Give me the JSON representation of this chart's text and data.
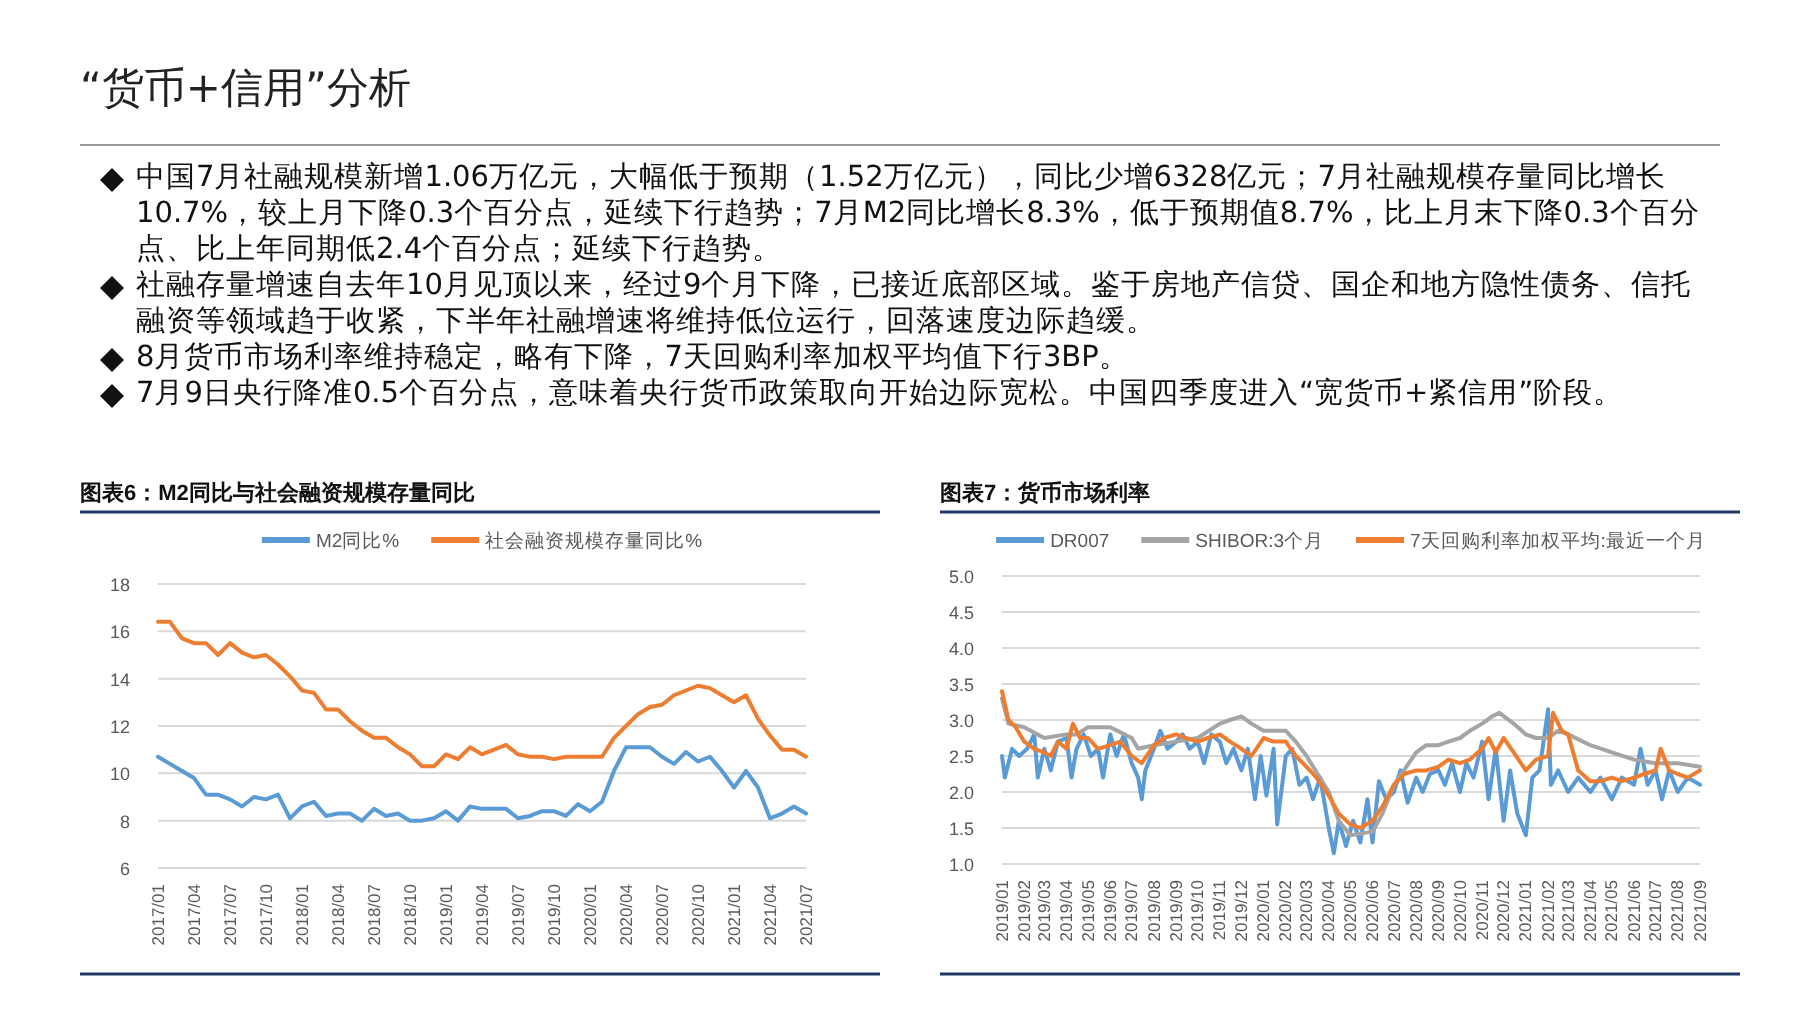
{
  "chart_data": [
    {
      "type": "other",
      "title": "“货币+信用”分析",
      "annotations": [
        "中国7月社融规模新增1.06万亿元，大幅低于预期（1.52万亿元），同比少增6328亿元；7月社融规模存量同比增长10.7%，较上月下降0.3个百分点，延续下行趋势；7月M2同比增长8.3%，低于预期值8.7%，比上月末下降0.3个百分点、比上年同期低2.4个百分点；延续下行趋势。",
        "社融存量增速自去年10月见顶以来，经过9个月下降，已接近底部区域。鉴于房地产信贷、国企和地方隐性债务、信托融资等领域趋于收紧，下半年社融增速将维持低位运行，回落速度边际趋缓。",
        "8月货币市场利率维持稳定，略有下降，7天回购利率加权平均值下行3BP。",
        "7月9日央行降准0.5个百分点，意味着央行货币政策取向开始边际宽松。中国四季度进入“宽货币+紧信用”阶段。"
      ]
    },
    {
      "type": "line",
      "title": "图表6：M2同比与社会融资规模存量同比",
      "categories": [
        "2017/01",
        null,
        null,
        "2017/04",
        null,
        null,
        "2017/07",
        null,
        null,
        "2017/10",
        null,
        null,
        "2018/01",
        null,
        null,
        "2018/04",
        null,
        null,
        "2018/07",
        null,
        null,
        "2018/10",
        null,
        null,
        "2019/01",
        null,
        null,
        "2019/04",
        null,
        null,
        "2019/07",
        null,
        null,
        "2019/10",
        null,
        null,
        "2020/01",
        null,
        null,
        "2020/04",
        null,
        null,
        "2020/07",
        null,
        null,
        "2020/10",
        null,
        null,
        "2021/01",
        null,
        null,
        "2021/04",
        null,
        null,
        "2021/07"
      ],
      "series": [
        {
          "name": "M2同比%",
          "color": "#5b9bd5",
          "values": [
            10.7,
            10.4,
            10.1,
            9.8,
            9.1,
            9.1,
            8.9,
            8.6,
            9.0,
            8.9,
            9.1,
            8.1,
            8.6,
            8.8,
            8.2,
            8.3,
            8.3,
            8.0,
            8.5,
            8.2,
            8.3,
            8.0,
            8.0,
            8.1,
            8.4,
            8.0,
            8.6,
            8.5,
            8.5,
            8.5,
            8.1,
            8.2,
            8.4,
            8.4,
            8.2,
            8.7,
            8.4,
            8.8,
            10.1,
            11.1,
            11.1,
            11.1,
            10.7,
            10.4,
            10.9,
            10.5,
            10.7,
            10.1,
            9.4,
            10.1,
            9.4,
            8.1,
            8.3,
            8.6,
            8.3
          ]
        },
        {
          "name": "社会融资规模存量同比%",
          "color": "#ed7d31",
          "values": [
            16.4,
            16.4,
            15.7,
            15.5,
            15.5,
            15.0,
            15.5,
            15.1,
            14.9,
            15.0,
            14.6,
            14.1,
            13.5,
            13.4,
            12.7,
            12.7,
            12.2,
            11.8,
            11.5,
            11.5,
            11.1,
            10.8,
            10.3,
            10.3,
            10.8,
            10.6,
            11.1,
            10.8,
            11.0,
            11.2,
            10.8,
            10.7,
            10.7,
            10.6,
            10.7,
            10.7,
            10.7,
            10.7,
            11.5,
            12.0,
            12.5,
            12.8,
            12.9,
            13.3,
            13.5,
            13.7,
            13.6,
            13.3,
            13.0,
            13.3,
            12.3,
            11.6,
            11.0,
            11.0,
            10.7
          ]
        }
      ],
      "ylim": [
        6,
        18
      ],
      "yticks": [
        6,
        8,
        10,
        12,
        14,
        16,
        18
      ],
      "grid": "y",
      "legend": "top"
    },
    {
      "type": "line",
      "title": "图表7：货币市场利率",
      "xlim": [
        "2019-01-01",
        "2021-09-01"
      ],
      "xticks": [
        {
          "value": "2019-01-01",
          "label": "2019/01"
        },
        {
          "value": "2019-02-01",
          "label": "2019/02"
        },
        {
          "value": "2019-03-01",
          "label": "2019/03"
        },
        {
          "value": "2019-04-01",
          "label": "2019/04"
        },
        {
          "value": "2019-05-01",
          "label": "2019/05"
        },
        {
          "value": "2019-06-01",
          "label": "2019/06"
        },
        {
          "value": "2019-07-01",
          "label": "2019/07"
        },
        {
          "value": "2019-08-01",
          "label": "2019/08"
        },
        {
          "value": "2019-09-01",
          "label": "2019/09"
        },
        {
          "value": "2019-10-01",
          "label": "2019/10"
        },
        {
          "value": "2019-11-01",
          "label": "2019/11"
        },
        {
          "value": "2019-12-01",
          "label": "2019/12"
        },
        {
          "value": "2020-01-01",
          "label": "2020/01"
        },
        {
          "value": "2020-02-01",
          "label": "2020/02"
        },
        {
          "value": "2020-03-01",
          "label": "2020/03"
        },
        {
          "value": "2020-04-01",
          "label": "2020/04"
        },
        {
          "value": "2020-05-01",
          "label": "2020/05"
        },
        {
          "value": "2020-06-01",
          "label": "2020/06"
        },
        {
          "value": "2020-07-01",
          "label": "2020/07"
        },
        {
          "value": "2020-08-01",
          "label": "2020/08"
        },
        {
          "value": "2020-09-01",
          "label": "2020/09"
        },
        {
          "value": "2020-10-01",
          "label": "2020/10"
        },
        {
          "value": "2020-11-01",
          "label": "2020/11"
        },
        {
          "value": "2020-12-01",
          "label": "2020/12"
        },
        {
          "value": "2021-01-01",
          "label": "2021/01"
        },
        {
          "value": "2021-02-01",
          "label": "2021/02"
        },
        {
          "value": "2021-03-01",
          "label": "2021/03"
        },
        {
          "value": "2021-04-01",
          "label": "2021/04"
        },
        {
          "value": "2021-05-01",
          "label": "2021/05"
        },
        {
          "value": "2021-06-01",
          "label": "2021/06"
        },
        {
          "value": "2021-07-01",
          "label": "2021/07"
        },
        {
          "value": "2021-08-01",
          "label": "2021/08"
        },
        {
          "value": "2021-09-01",
          "label": "2021/09"
        }
      ],
      "series": [
        {
          "name": "DR007",
          "color": "#5b9bd5",
          "x": [
            "2019-01-01",
            "2019-01-05",
            "2019-01-15",
            "2019-01-25",
            "2019-02-05",
            "2019-02-15",
            "2019-02-20",
            "2019-03-01",
            "2019-03-10",
            "2019-03-20",
            "2019-04-01",
            "2019-04-08",
            "2019-04-15",
            "2019-04-25",
            "2019-05-05",
            "2019-05-15",
            "2019-05-22",
            "2019-06-01",
            "2019-06-10",
            "2019-06-20",
            "2019-07-01",
            "2019-07-10",
            "2019-07-15",
            "2019-07-20",
            "2019-08-01",
            "2019-08-10",
            "2019-08-20",
            "2019-09-01",
            "2019-09-10",
            "2019-09-20",
            "2019-10-01",
            "2019-10-10",
            "2019-10-20",
            "2019-11-01",
            "2019-11-10",
            "2019-11-20",
            "2019-12-01",
            "2019-12-10",
            "2019-12-20",
            "2019-12-28",
            "2020-01-05",
            "2020-01-15",
            "2020-01-20",
            "2020-02-01",
            "2020-02-10",
            "2020-02-20",
            "2020-03-01",
            "2020-03-10",
            "2020-03-20",
            "2020-04-01",
            "2020-04-08",
            "2020-04-15",
            "2020-04-25",
            "2020-05-05",
            "2020-05-15",
            "2020-05-25",
            "2020-06-01",
            "2020-06-10",
            "2020-06-20",
            "2020-07-01",
            "2020-07-10",
            "2020-07-20",
            "2020-08-01",
            "2020-08-10",
            "2020-08-20",
            "2020-09-01",
            "2020-09-10",
            "2020-09-20",
            "2020-10-01",
            "2020-10-10",
            "2020-10-20",
            "2020-11-01",
            "2020-11-10",
            "2020-11-20",
            "2020-12-01",
            "2020-12-10",
            "2020-12-20",
            "2021-01-01",
            "2021-01-10",
            "2021-01-20",
            "2021-02-01",
            "2021-02-05",
            "2021-02-15",
            "2021-03-01",
            "2021-03-15",
            "2021-04-01",
            "2021-04-15",
            "2021-05-01",
            "2021-05-15",
            "2021-06-01",
            "2021-06-10",
            "2021-06-20",
            "2021-07-01",
            "2021-07-10",
            "2021-07-20",
            "2021-08-01",
            "2021-08-15",
            "2021-09-01"
          ],
          "values": [
            2.5,
            2.2,
            2.6,
            2.5,
            2.6,
            2.8,
            2.2,
            2.6,
            2.3,
            2.7,
            2.75,
            2.2,
            2.6,
            2.8,
            2.5,
            2.6,
            2.2,
            2.8,
            2.5,
            2.8,
            2.4,
            2.2,
            1.9,
            2.3,
            2.6,
            2.85,
            2.6,
            2.7,
            2.8,
            2.6,
            2.7,
            2.4,
            2.8,
            2.7,
            2.4,
            2.6,
            2.3,
            2.6,
            1.9,
            2.5,
            1.95,
            2.6,
            1.55,
            2.5,
            2.6,
            2.1,
            2.2,
            1.9,
            2.2,
            1.5,
            1.15,
            1.6,
            1.25,
            1.6,
            1.3,
            1.9,
            1.3,
            2.15,
            1.9,
            2.0,
            2.3,
            1.85,
            2.2,
            2.0,
            2.25,
            2.3,
            2.1,
            2.4,
            2.0,
            2.4,
            2.2,
            2.7,
            1.9,
            2.6,
            1.6,
            2.3,
            1.7,
            1.4,
            2.2,
            2.3,
            3.15,
            2.1,
            2.3,
            2.0,
            2.2,
            2.0,
            2.2,
            1.9,
            2.2,
            2.1,
            2.6,
            2.1,
            2.3,
            1.9,
            2.3,
            2.0,
            2.2,
            2.1
          ]
        },
        {
          "name": "SHIBOR:3个月",
          "color": "#a5a5a5",
          "x": [
            "2019-01-01",
            "2019-01-10",
            "2019-02-01",
            "2019-03-01",
            "2019-04-01",
            "2019-04-15",
            "2019-05-01",
            "2019-06-01",
            "2019-07-01",
            "2019-07-10",
            "2019-08-01",
            "2019-09-01",
            "2019-10-01",
            "2019-11-01",
            "2019-11-15",
            "2019-12-01",
            "2019-12-15",
            "2020-01-01",
            "2020-02-01",
            "2020-02-15",
            "2020-03-01",
            "2020-04-01",
            "2020-04-15",
            "2020-05-01",
            "2020-06-01",
            "2020-06-15",
            "2020-07-01",
            "2020-08-01",
            "2020-08-15",
            "2020-09-01",
            "2020-09-15",
            "2020-10-01",
            "2020-10-15",
            "2020-11-01",
            "2020-11-15",
            "2020-11-25",
            "2020-12-15",
            "2021-01-01",
            "2021-01-15",
            "2021-02-01",
            "2021-02-15",
            "2021-03-01",
            "2021-04-01",
            "2021-05-01",
            "2021-06-01",
            "2021-07-01",
            "2021-08-01",
            "2021-09-01"
          ],
          "values": [
            3.3,
            2.95,
            2.9,
            2.75,
            2.8,
            2.8,
            2.9,
            2.9,
            2.75,
            2.6,
            2.65,
            2.7,
            2.75,
            2.95,
            3.0,
            3.05,
            2.95,
            2.85,
            2.85,
            2.7,
            2.5,
            2.0,
            1.6,
            1.4,
            1.45,
            1.7,
            2.1,
            2.55,
            2.65,
            2.65,
            2.7,
            2.75,
            2.85,
            2.95,
            3.05,
            3.1,
            2.95,
            2.8,
            2.75,
            2.75,
            2.85,
            2.8,
            2.65,
            2.55,
            2.45,
            2.4,
            2.4,
            2.35
          ]
        },
        {
          "name": "7天回购利率加权平均:最近一个月",
          "color": "#ed7d31",
          "x": [
            "2019-01-01",
            "2019-01-10",
            "2019-01-20",
            "2019-02-01",
            "2019-02-15",
            "2019-03-01",
            "2019-03-10",
            "2019-03-20",
            "2019-04-01",
            "2019-04-10",
            "2019-04-20",
            "2019-05-01",
            "2019-05-15",
            "2019-06-01",
            "2019-06-15",
            "2019-07-01",
            "2019-07-15",
            "2019-08-01",
            "2019-08-15",
            "2019-09-01",
            "2019-09-15",
            "2019-10-01",
            "2019-10-15",
            "2019-11-01",
            "2019-11-15",
            "2019-12-01",
            "2019-12-15",
            "2020-01-01",
            "2020-01-15",
            "2020-02-01",
            "2020-02-15",
            "2020-03-01",
            "2020-03-15",
            "2020-04-01",
            "2020-04-15",
            "2020-05-01",
            "2020-05-15",
            "2020-06-01",
            "2020-06-15",
            "2020-07-01",
            "2020-07-15",
            "2020-08-01",
            "2020-08-15",
            "2020-09-01",
            "2020-09-15",
            "2020-10-01",
            "2020-10-15",
            "2020-11-01",
            "2020-11-10",
            "2020-11-20",
            "2020-12-01",
            "2020-12-15",
            "2021-01-01",
            "2021-01-15",
            "2021-02-01",
            "2021-02-08",
            "2021-02-20",
            "2021-03-01",
            "2021-03-15",
            "2021-04-01",
            "2021-04-15",
            "2021-05-01",
            "2021-05-15",
            "2021-06-01",
            "2021-06-15",
            "2021-07-01",
            "2021-07-08",
            "2021-07-20",
            "2021-08-01",
            "2021-08-15",
            "2021-09-01"
          ],
          "values": [
            3.4,
            3.0,
            2.9,
            2.7,
            2.6,
            2.55,
            2.5,
            2.7,
            2.6,
            2.95,
            2.75,
            2.75,
            2.6,
            2.65,
            2.7,
            2.5,
            2.4,
            2.65,
            2.75,
            2.8,
            2.75,
            2.7,
            2.75,
            2.8,
            2.7,
            2.6,
            2.5,
            2.75,
            2.7,
            2.7,
            2.5,
            2.35,
            2.2,
            1.95,
            1.7,
            1.55,
            1.5,
            1.6,
            1.8,
            2.1,
            2.25,
            2.3,
            2.3,
            2.35,
            2.45,
            2.4,
            2.45,
            2.6,
            2.75,
            2.55,
            2.75,
            2.55,
            2.3,
            2.45,
            2.5,
            3.1,
            2.85,
            2.8,
            2.3,
            2.15,
            2.15,
            2.2,
            2.15,
            2.2,
            2.25,
            2.3,
            2.6,
            2.3,
            2.25,
            2.2,
            2.3
          ]
        }
      ],
      "ylim": [
        1,
        5
      ],
      "yticks": [
        {
          "value": 1,
          "label": "1.0"
        },
        {
          "value": 1.5,
          "label": "1.5"
        },
        {
          "value": 2,
          "label": "2.0"
        },
        {
          "value": 2.5,
          "label": "2.5"
        },
        {
          "value": 3,
          "label": "3.0"
        },
        {
          "value": 3.5,
          "label": "3.5"
        },
        {
          "value": 4,
          "label": "4.0"
        },
        {
          "value": 4.5,
          "label": "4.5"
        },
        {
          "value": 5,
          "label": "5.0"
        }
      ],
      "grid": "y",
      "legend": "top"
    }
  ]
}
